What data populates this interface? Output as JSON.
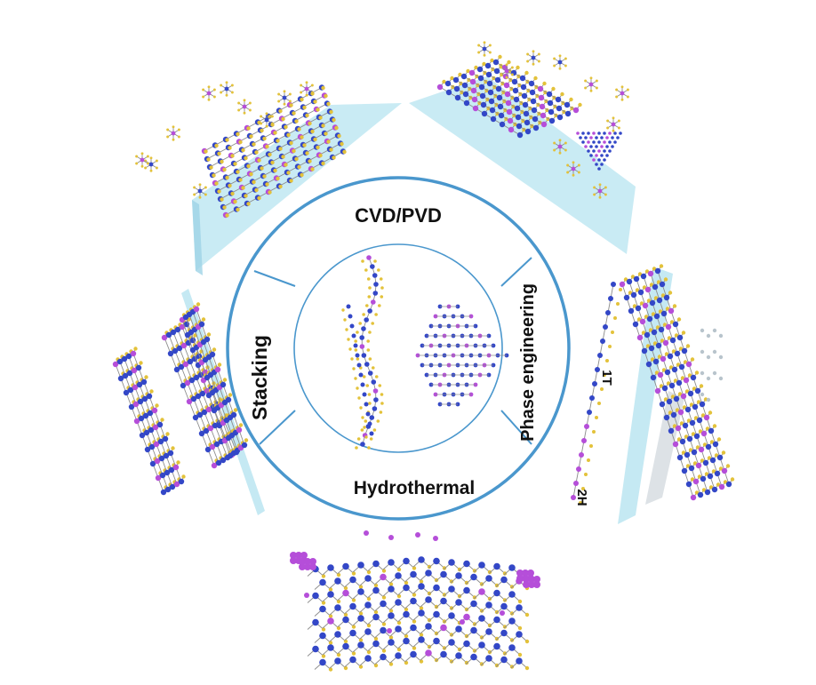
{
  "diagram": {
    "segments": {
      "top": "CVD/PVD",
      "right": "Phase engineering",
      "bottom": "Hydrothermal",
      "left": "Stacking"
    },
    "phase_labels": {
      "one_t": "1T",
      "two_h": "2H"
    }
  },
  "colors": {
    "ring": "#4a97cd",
    "panel": "#bfe7f2",
    "metal_atom": "#3347c7",
    "dopant_atom": "#b54ed9",
    "chalcogen_atom": "#e3c23a",
    "bond": "#8c8c8c"
  }
}
